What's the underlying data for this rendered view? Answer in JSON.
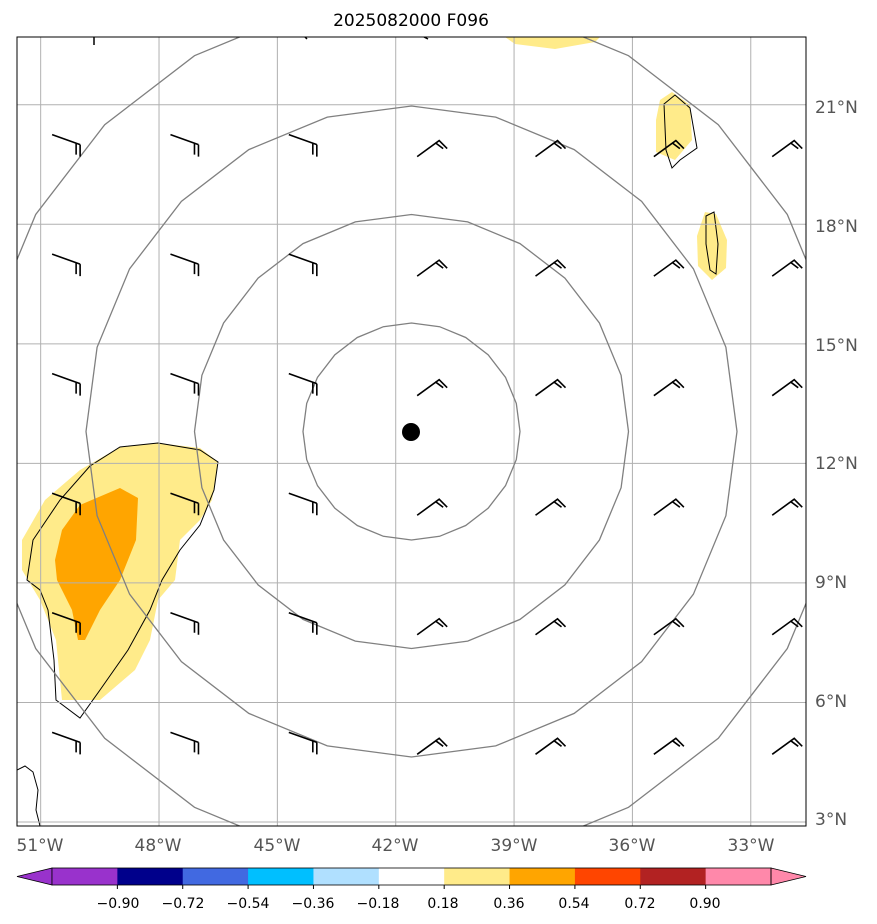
{
  "title": "2025082000 F096",
  "map": {
    "lon_labels": [
      "51°W",
      "48°W",
      "45°W",
      "42°W",
      "39°W",
      "36°W",
      "33°W"
    ],
    "lat_labels": [
      "3°N",
      "6°N",
      "9°N",
      "12°N",
      "15°N",
      "18°N",
      "21°N"
    ],
    "lon_min": -51.6,
    "lon_max": -31.6,
    "lat_min": 2.9,
    "lat_max": 22.7,
    "center": {
      "lon": -41.6,
      "lat": 12.8
    },
    "range_ring_radii_deg": [
      2.75,
      5.5,
      8.25,
      11.0
    ],
    "barb_lons": [
      -50.0,
      -47.0,
      -44.0,
      -41.0,
      -38.0,
      -35.0,
      -32.0
    ],
    "barb_lats": [
      5.0,
      8.0,
      11.0,
      14.0,
      17.0,
      20.0
    ]
  },
  "colorbar": {
    "tick_labels": [
      "−0.90",
      "−0.72",
      "−0.54",
      "−0.36",
      "−0.18",
      "0.18",
      "0.36",
      "0.54",
      "0.72",
      "0.90"
    ],
    "colors": [
      "#9932cc",
      "#9932cc",
      "#00008b",
      "#4169e1",
      "#00bfff",
      "#b0e0ff",
      "#ffffff",
      "#ffeb8a",
      "#ffa500",
      "#ff4500",
      "#b22222",
      "#ff88aa",
      "#ff88aa"
    ]
  }
}
